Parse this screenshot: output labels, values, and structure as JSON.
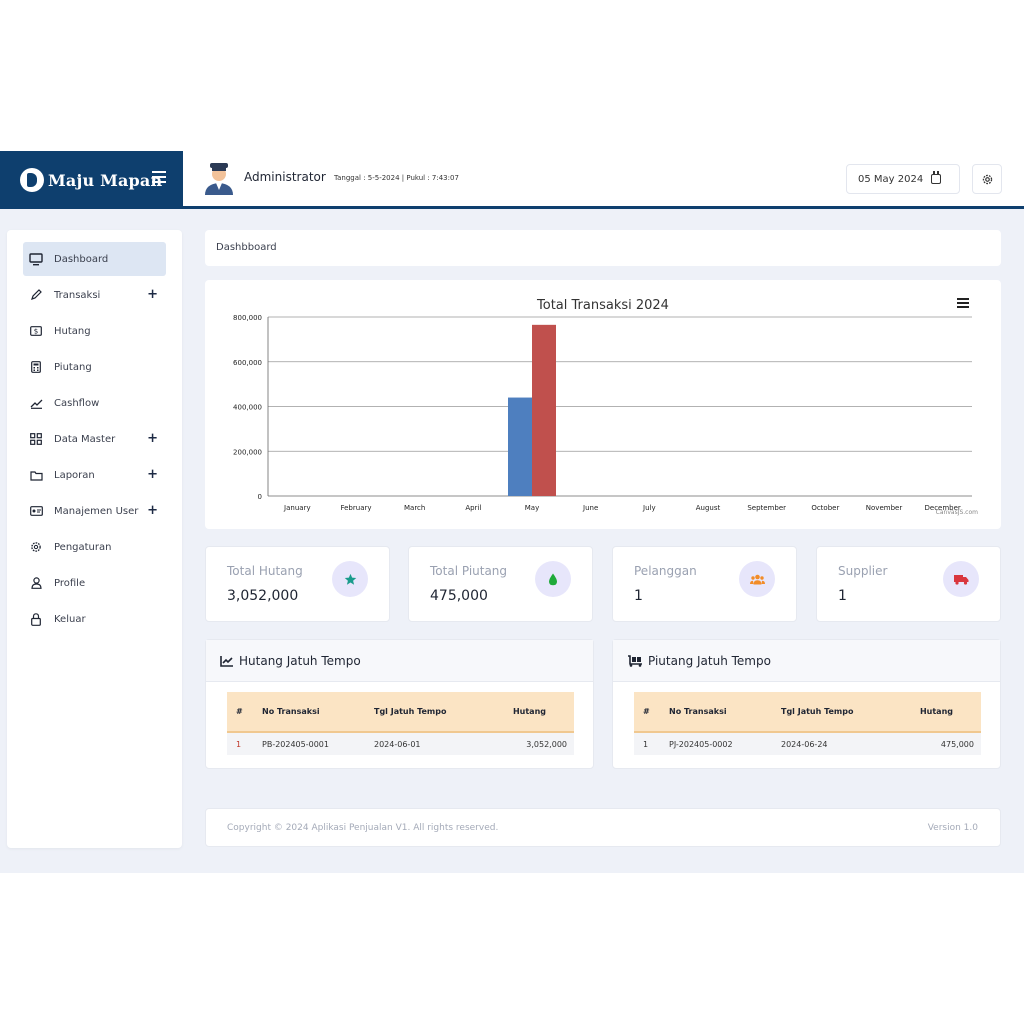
{
  "header": {
    "brand": "Maju Mapan",
    "admin_name": "Administrator",
    "admin_meta": "Tanggal : 5-5-2024 | Pukul : 7:43:07",
    "date": "05 May 2024"
  },
  "sidebar": {
    "items": [
      {
        "label": "Dashboard",
        "icon": "monitor-icon"
      },
      {
        "label": "Transaksi",
        "icon": "pencil-icon",
        "plus": "+"
      },
      {
        "label": "Hutang",
        "icon": "dollar-icon"
      },
      {
        "label": "Piutang",
        "icon": "calculator-icon"
      },
      {
        "label": "Cashflow",
        "icon": "trend-icon"
      },
      {
        "label": "Data Master",
        "icon": "grid-icon",
        "plus": "+"
      },
      {
        "label": "Laporan",
        "icon": "folder-icon",
        "plus": "+"
      },
      {
        "label": "Manajemen User",
        "icon": "id-card-icon",
        "plus": "+"
      },
      {
        "label": "Pengaturan",
        "icon": "gear-icon"
      },
      {
        "label": "Profile",
        "icon": "user-icon"
      },
      {
        "label": "Keluar",
        "icon": "lock-icon"
      }
    ]
  },
  "breadcrumb": "Dashbboard",
  "chart_data": {
    "type": "bar",
    "title": "Total Transaksi 2024",
    "categories": [
      "January",
      "February",
      "March",
      "April",
      "May",
      "June",
      "July",
      "August",
      "September",
      "October",
      "November",
      "December"
    ],
    "series": [
      {
        "color": "#4e7fbf",
        "values": [
          0,
          0,
          0,
          0,
          440000,
          0,
          0,
          0,
          0,
          0,
          0,
          0
        ]
      },
      {
        "color": "#c0504d",
        "values": [
          0,
          0,
          0,
          0,
          765000,
          0,
          0,
          0,
          0,
          0,
          0,
          0
        ]
      }
    ],
    "yticks": [
      "0",
      "200,000",
      "400,000",
      "600,000",
      "800,000"
    ],
    "ylim": [
      0,
      800000
    ],
    "grid": true,
    "credit": "CanvasJS.com"
  },
  "stats": [
    {
      "label": "Total Hutang",
      "value": "3,052,000",
      "icon": "star-icon",
      "color": "#1a9c8c"
    },
    {
      "label": "Total Piutang",
      "value": "475,000",
      "icon": "drop-icon",
      "color": "#1faa3a"
    },
    {
      "label": "Pelanggan",
      "value": "1",
      "icon": "users-icon",
      "color": "#f28c28"
    },
    {
      "label": "Supplier",
      "value": "1",
      "icon": "truck-icon",
      "color": "#d9363e"
    }
  ],
  "hutang_table": {
    "title": "Hutang Jatuh Tempo",
    "headers": [
      "#",
      "No Transaksi",
      "Tgl Jatuh Tempo",
      "Hutang"
    ],
    "row": [
      "1",
      "PB-202405-0001",
      "2024-06-01",
      "3,052,000"
    ]
  },
  "piutang_table": {
    "title": "Piutang Jatuh Tempo",
    "headers": [
      "#",
      "No Transaksi",
      "Tgl Jatuh Tempo",
      "Hutang"
    ],
    "row": [
      "1",
      "PJ-202405-0002",
      "2024-06-24",
      "475,000"
    ]
  },
  "footer": {
    "copyright": "Copyright © 2024 Aplikasi Penjualan V1. All rights reserved.",
    "version": "Version 1.0"
  }
}
